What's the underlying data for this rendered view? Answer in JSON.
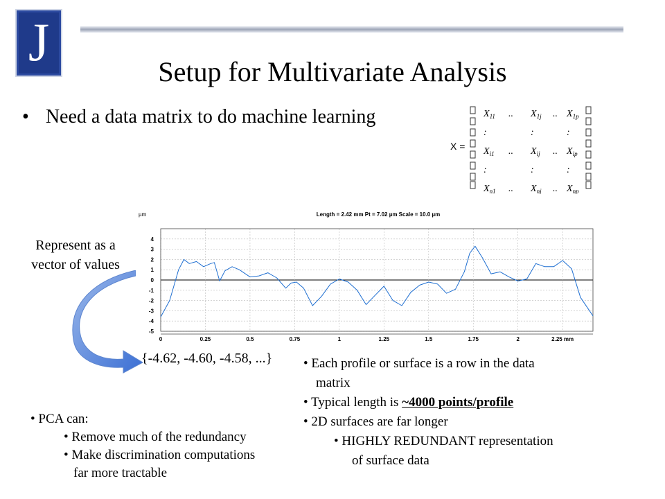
{
  "logo": {
    "letter": "J"
  },
  "slide": {
    "title": "Setup for Multivariate Analysis"
  },
  "main_bullet": {
    "text": "Need a data matrix to do machine learning"
  },
  "matrix": {
    "lhs": "X =",
    "rows": [
      [
        "X11",
        "..",
        "X1j",
        "..",
        "X1p"
      ],
      [
        ":",
        "",
        ":",
        "",
        ":"
      ],
      [
        "Xi1",
        "..",
        "Xij",
        "..",
        "Xip"
      ],
      [
        ":",
        "",
        ":",
        "",
        ":"
      ],
      [
        "Xn1",
        "..",
        "Xnj",
        "..",
        "Xnp"
      ]
    ]
  },
  "left_note": {
    "line1": "Represent as a",
    "line2": "vector of values"
  },
  "vector_text": "{-4.62, -4.60, -4.58, ...}",
  "right_bullets": {
    "b1_l1": "Each profile or surface is a row in the data",
    "b1_l2": "matrix",
    "b2_pre": "Typical length is ",
    "b2_emph": "~4000 points/profile",
    "b3": "2D surfaces are far longer",
    "b4_l1": "HIGHLY REDUNDANT representation",
    "b4_l2": "of surface data"
  },
  "left_bullets": {
    "head": "PCA can:",
    "s1": "Remove much of the redundancy",
    "s2_l1": "Make discrimination computations",
    "s2_l2": "far more tractable"
  },
  "chart_data": {
    "type": "line",
    "header": "Length = 2.42 mm  Pt = 7.02 µm  Scale = 10.0 µm",
    "ylabel": "µm",
    "xlim": [
      0,
      2.42
    ],
    "ylim": [
      -5,
      5
    ],
    "yticks": [
      "4",
      "3",
      "2",
      "1",
      "0",
      "-1",
      "-2",
      "-3",
      "-4",
      "-5"
    ],
    "xticks": [
      "0",
      "0.25",
      "0.5",
      "0.75",
      "1",
      "1.25",
      "1.5",
      "1.75",
      "2",
      "2.25 mm"
    ],
    "x": [
      0,
      0.05,
      0.1,
      0.13,
      0.16,
      0.2,
      0.24,
      0.28,
      0.3,
      0.33,
      0.36,
      0.4,
      0.44,
      0.5,
      0.55,
      0.6,
      0.65,
      0.7,
      0.73,
      0.76,
      0.8,
      0.85,
      0.9,
      0.95,
      1.0,
      1.05,
      1.1,
      1.15,
      1.2,
      1.25,
      1.3,
      1.35,
      1.4,
      1.45,
      1.5,
      1.55,
      1.6,
      1.65,
      1.7,
      1.73,
      1.76,
      1.8,
      1.85,
      1.9,
      1.95,
      2.0,
      2.05,
      2.1,
      2.15,
      2.2,
      2.25,
      2.3,
      2.35,
      2.42
    ],
    "series": [
      {
        "color": "#1f6fd1",
        "values": [
          -3.6,
          -2.0,
          1.0,
          2.0,
          1.6,
          1.8,
          1.3,
          1.6,
          1.7,
          -0.1,
          0.9,
          1.3,
          1.0,
          0.3,
          0.4,
          0.7,
          0.2,
          -0.8,
          -0.3,
          -0.2,
          -0.8,
          -2.5,
          -1.6,
          -0.4,
          0.1,
          -0.2,
          -1.0,
          -2.4,
          -1.5,
          -0.6,
          -2.0,
          -2.5,
          -1.2,
          -0.5,
          -0.2,
          -0.4,
          -1.3,
          -0.9,
          0.8,
          2.6,
          3.3,
          2.2,
          0.6,
          0.8,
          0.3,
          -0.1,
          0.1,
          1.6,
          1.3,
          1.3,
          1.9,
          1.1,
          -1.7,
          -3.5
        ]
      }
    ]
  }
}
